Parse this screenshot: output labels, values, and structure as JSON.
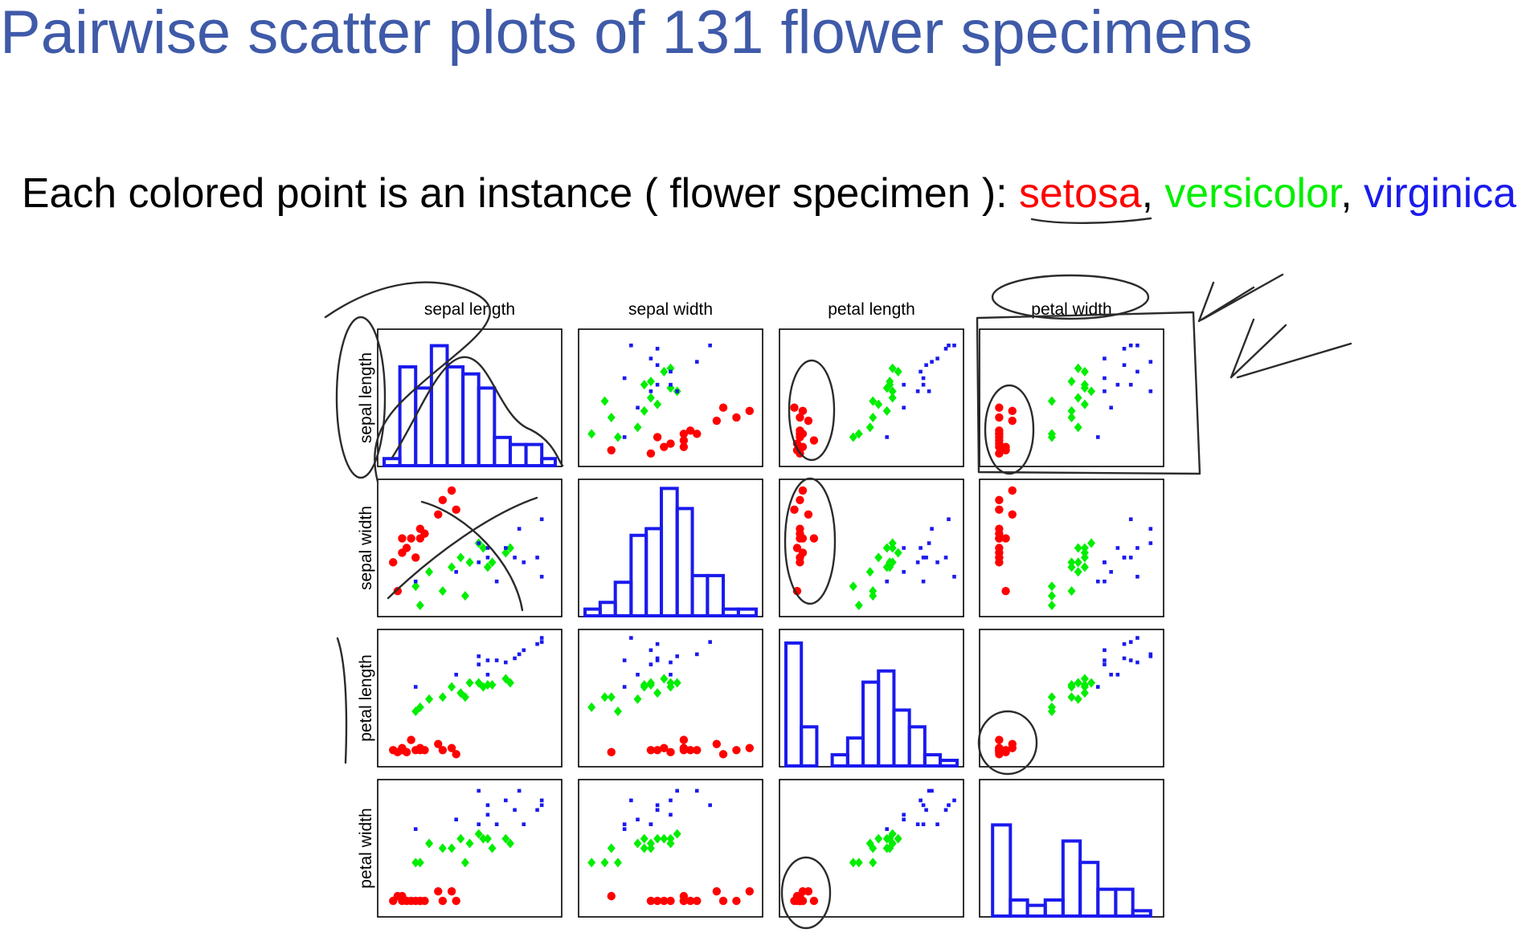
{
  "slide": {
    "title": "Pairwise scatter plots of 131 flower specimens",
    "subtitle": "Each colored point is an instance ( flower specimen ):",
    "separator": ","
  },
  "chart_data": {
    "type": "scatter_matrix",
    "features": [
      {
        "name": "sepal length",
        "lim": [
          4.2,
          8.0
        ]
      },
      {
        "name": "sepal width",
        "lim": [
          1.9,
          4.5
        ]
      },
      {
        "name": "petal length",
        "lim": [
          0.9,
          7.0
        ]
      },
      {
        "name": "petal width",
        "lim": [
          0.0,
          2.6
        ]
      }
    ],
    "series": [
      {
        "name": "setosa",
        "color": "#ff0000",
        "marker": "circle",
        "values": [
          [
            5.1,
            3.5,
            1.4,
            0.2
          ],
          [
            4.9,
            3.0,
            1.4,
            0.2
          ],
          [
            4.7,
            3.2,
            1.3,
            0.2
          ],
          [
            4.6,
            3.1,
            1.5,
            0.2
          ],
          [
            5.0,
            3.6,
            1.4,
            0.2
          ],
          [
            5.4,
            3.9,
            1.7,
            0.4
          ],
          [
            4.6,
            3.4,
            1.4,
            0.3
          ],
          [
            5.0,
            3.4,
            1.5,
            0.2
          ],
          [
            4.4,
            2.9,
            1.4,
            0.2
          ],
          [
            5.8,
            4.0,
            1.2,
            0.2
          ],
          [
            5.7,
            4.4,
            1.5,
            0.4
          ],
          [
            4.5,
            2.3,
            1.3,
            0.3
          ],
          [
            5.5,
            4.2,
            1.4,
            0.2
          ],
          [
            4.8,
            3.4,
            1.9,
            0.2
          ]
        ]
      },
      {
        "name": "versicolor",
        "color": "#00ee00",
        "marker": "diamond",
        "values": [
          [
            7.0,
            3.2,
            4.7,
            1.4
          ],
          [
            6.4,
            3.2,
            4.5,
            1.5
          ],
          [
            6.9,
            3.1,
            4.9,
            1.5
          ],
          [
            5.5,
            2.3,
            4.0,
            1.3
          ],
          [
            6.5,
            2.8,
            4.6,
            1.5
          ],
          [
            5.7,
            2.8,
            4.5,
            1.3
          ],
          [
            6.3,
            3.3,
            4.7,
            1.6
          ],
          [
            4.9,
            2.4,
            3.3,
            1.0
          ],
          [
            6.6,
            2.9,
            4.6,
            1.3
          ],
          [
            5.2,
            2.7,
            3.9,
            1.4
          ],
          [
            5.0,
            2.0,
            3.5,
            1.0
          ],
          [
            5.9,
            3.0,
            4.2,
            1.5
          ],
          [
            6.0,
            2.2,
            4.0,
            1.0
          ],
          [
            6.1,
            2.9,
            4.7,
            1.4
          ]
        ]
      },
      {
        "name": "virginica",
        "color": "#1a1aee",
        "marker": "square",
        "values": [
          [
            6.3,
            3.3,
            6.0,
            2.5
          ],
          [
            5.8,
            2.7,
            5.1,
            1.9
          ],
          [
            7.1,
            3.0,
            5.9,
            2.1
          ],
          [
            6.3,
            2.9,
            5.6,
            1.8
          ],
          [
            6.5,
            3.0,
            5.8,
            2.2
          ],
          [
            7.6,
            3.0,
            6.6,
            2.1
          ],
          [
            4.9,
            2.5,
            4.5,
            1.7
          ],
          [
            7.3,
            2.9,
            6.3,
            1.8
          ],
          [
            6.7,
            2.5,
            5.8,
            1.8
          ],
          [
            7.2,
            3.6,
            6.1,
            2.5
          ],
          [
            6.5,
            3.2,
            5.1,
            2.0
          ],
          [
            7.7,
            3.8,
            6.7,
            2.2
          ],
          [
            7.7,
            2.6,
            6.9,
            2.3
          ],
          [
            6.9,
            3.2,
            5.7,
            2.3
          ]
        ]
      }
    ],
    "histograms": [
      {
        "bins": [
          4.2,
          4.55,
          4.9,
          5.25,
          5.6,
          5.95,
          6.3,
          6.65,
          7.0,
          7.35,
          7.7,
          8.0
        ],
        "counts": [
          1,
          14,
          11,
          17,
          14,
          13,
          11,
          4,
          3,
          3,
          1
        ],
        "ylim": [
          0,
          19
        ]
      },
      {
        "bins": [
          1.9,
          2.13,
          2.36,
          2.6,
          2.83,
          3.06,
          3.3,
          3.53,
          3.76,
          4.0,
          4.23,
          4.5
        ],
        "counts": [
          1,
          2,
          5,
          12,
          13,
          19,
          16,
          6,
          6,
          1,
          1
        ],
        "ylim": [
          0,
          20
        ]
      },
      {
        "bins": [
          0.9,
          1.45,
          2.0,
          2.55,
          3.1,
          3.65,
          4.2,
          4.75,
          5.3,
          5.85,
          6.4,
          7.0
        ],
        "counts": [
          22,
          7,
          0,
          2,
          5,
          15,
          17,
          10,
          7,
          2,
          1
        ],
        "ylim": [
          0,
          24
        ]
      },
      {
        "bins": [
          0.1,
          0.37,
          0.63,
          0.9,
          1.17,
          1.43,
          1.7,
          1.97,
          2.23,
          2.5
        ],
        "counts": [
          17,
          3,
          2,
          3,
          14,
          10,
          5,
          5,
          1
        ],
        "ylim": [
          0,
          25
        ]
      }
    ],
    "hist_color": "#1a1aee"
  }
}
